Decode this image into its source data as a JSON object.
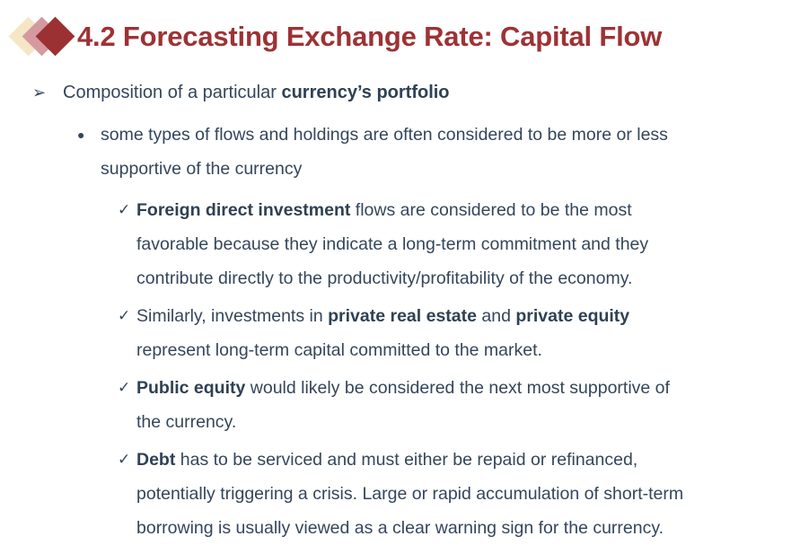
{
  "slide": {
    "title": "4.2 Forecasting Exchange Rate: Capital Flow",
    "colors": {
      "title": "#9E3234",
      "text": "#35465B",
      "text_bold": "#2F4154",
      "diamond_back": "#F5E6C5",
      "diamond_middle": "#D59AA0",
      "diamond_front": "#9C3133"
    },
    "markers": {
      "level1": "➢",
      "level2": "●",
      "check": "✓"
    },
    "level1": {
      "segments": [
        {
          "t": "Composition of a particular ",
          "b": false
        },
        {
          "t": "currency’s portfolio",
          "b": true
        }
      ]
    },
    "level2": {
      "segments": [
        {
          "t": "some types of flows and holdings are often considered to be more or less\nsupportive of the currency",
          "b": false
        }
      ]
    },
    "check_items": [
      {
        "segments": [
          {
            "t": "Foreign direct investment",
            "b": true
          },
          {
            "t": " flows are considered to be the most\nfavorable because they indicate a long-term commitment and they\ncontribute directly to the productivity/profitability of the economy.",
            "b": false
          }
        ]
      },
      {
        "segments": [
          {
            "t": "Similarly, investments in ",
            "b": false
          },
          {
            "t": "private real estate",
            "b": true
          },
          {
            "t": " and ",
            "b": false
          },
          {
            "t": "private equity",
            "b": true
          },
          {
            "t": "\nrepresent long-term capital committed to the market.",
            "b": false
          }
        ]
      },
      {
        "segments": [
          {
            "t": "Public equity",
            "b": true
          },
          {
            "t": " would likely be considered the next most supportive of\nthe currency.",
            "b": false
          }
        ]
      },
      {
        "segments": [
          {
            "t": "Debt",
            "b": true
          },
          {
            "t": " has to be serviced and must either be repaid or refinanced,\npotentially triggering a crisis. Large or rapid accumulation of short-term\nborrowing is usually viewed as a clear warning sign for the currency.",
            "b": false
          }
        ]
      }
    ]
  }
}
